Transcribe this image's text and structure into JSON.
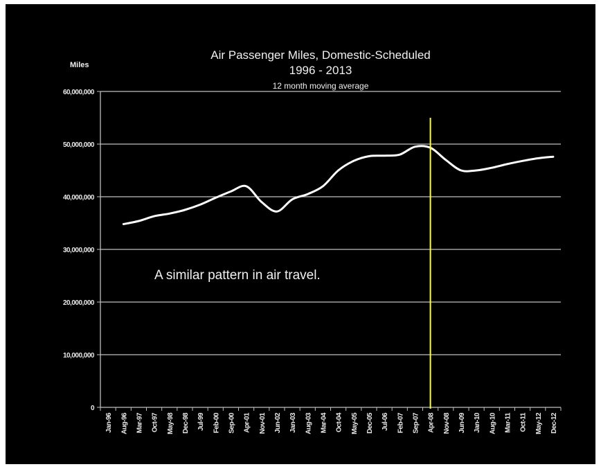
{
  "chart_data": {
    "type": "line",
    "title_line1": "Air Passenger Miles, Domestic-Scheduled",
    "title_line2": "1996 - 2013",
    "subtitle": "12 month moving average",
    "ylabel": "Miles",
    "annotation": "A similar pattern in air travel.",
    "ylim": [
      0,
      60000000
    ],
    "yticks": [
      0,
      10000000,
      20000000,
      30000000,
      40000000,
      50000000,
      60000000
    ],
    "ytick_labels": [
      "0",
      "10,000,000",
      "20,000,000",
      "30,000,000",
      "40,000,000",
      "50,000,000",
      "60,000,000"
    ],
    "x_categories": [
      "Jan-96",
      "Aug-96",
      "Mar-97",
      "Oct-97",
      "May-98",
      "Dec-98",
      "Jul-99",
      "Feb-00",
      "Sep-00",
      "Apr-01",
      "Nov-01",
      "Jun-02",
      "Jan-03",
      "Aug-03",
      "Mar-04",
      "Oct-04",
      "May-05",
      "Dec-05",
      "Jul-06",
      "Feb-07",
      "Sep-07",
      "Apr-08",
      "Nov-08",
      "Jun-09",
      "Jan-10",
      "Aug-10",
      "Mar-11",
      "Oct-11",
      "May-12",
      "Dec-12"
    ],
    "marker_category_index": 21,
    "marker_label": "Apr-08",
    "series": [
      {
        "values": [
          null,
          34800000,
          35400000,
          36300000,
          36800000,
          37500000,
          38500000,
          39800000,
          41000000,
          42000000,
          39000000,
          37200000,
          39500000,
          40500000,
          42000000,
          45000000,
          46800000,
          47700000,
          47800000,
          48000000,
          49500000,
          49300000,
          47000000,
          45000000,
          45000000,
          45500000,
          46200000,
          46800000,
          47300000,
          47600000
        ]
      }
    ],
    "colors": {
      "background": "#000000",
      "line": "#ffffff",
      "grid": "#bfbfbf",
      "marker": "#ffff33"
    },
    "grid": true
  }
}
